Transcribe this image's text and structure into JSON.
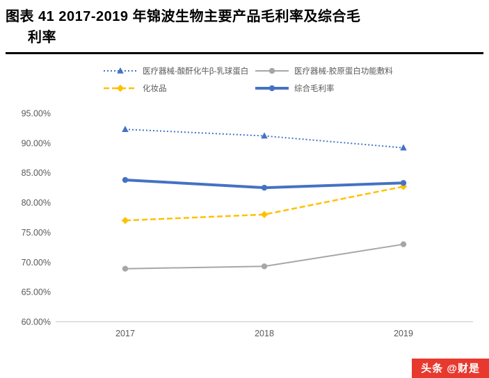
{
  "header": {
    "title_line1": "图表 41 2017-2019 年锦波生物主要产品毛利率及综合毛",
    "title_line2": "利率"
  },
  "chart_data": {
    "type": "line",
    "categories": [
      "2017",
      "2018",
      "2019"
    ],
    "series": [
      {
        "name": "医疗器械-酸酐化牛β-乳球蛋白",
        "values": [
          92.3,
          91.2,
          89.2
        ],
        "color": "#4472C4",
        "dash": "dotted",
        "marker": "triangle",
        "width": 2
      },
      {
        "name": "医疗器械-胶原蛋白功能敷料",
        "values": [
          68.9,
          69.3,
          73.0
        ],
        "color": "#A6A6A6",
        "dash": "solid",
        "marker": "circle",
        "width": 2
      },
      {
        "name": "化妆品",
        "values": [
          77.0,
          78.0,
          82.7
        ],
        "color": "#FFC000",
        "dash": "dashed",
        "marker": "diamond",
        "width": 2.5
      },
      {
        "name": "综合毛利率",
        "values": [
          83.8,
          82.5,
          83.3
        ],
        "color": "#4472C4",
        "dash": "solid",
        "marker": "circle",
        "width": 4
      }
    ],
    "title": "",
    "xlabel": "",
    "ylabel": "",
    "ylim": [
      60,
      95
    ],
    "ytick_step": 5,
    "ytick_format": "percent2",
    "legend_position": "top",
    "grid": false,
    "axis_line_color": "#BFBFBF",
    "tick_label_color": "#595959"
  },
  "footer": {
    "watermark": "头条 @财是",
    "badge_bg": "#e8392f",
    "badge_text_color": "#ffffff"
  }
}
